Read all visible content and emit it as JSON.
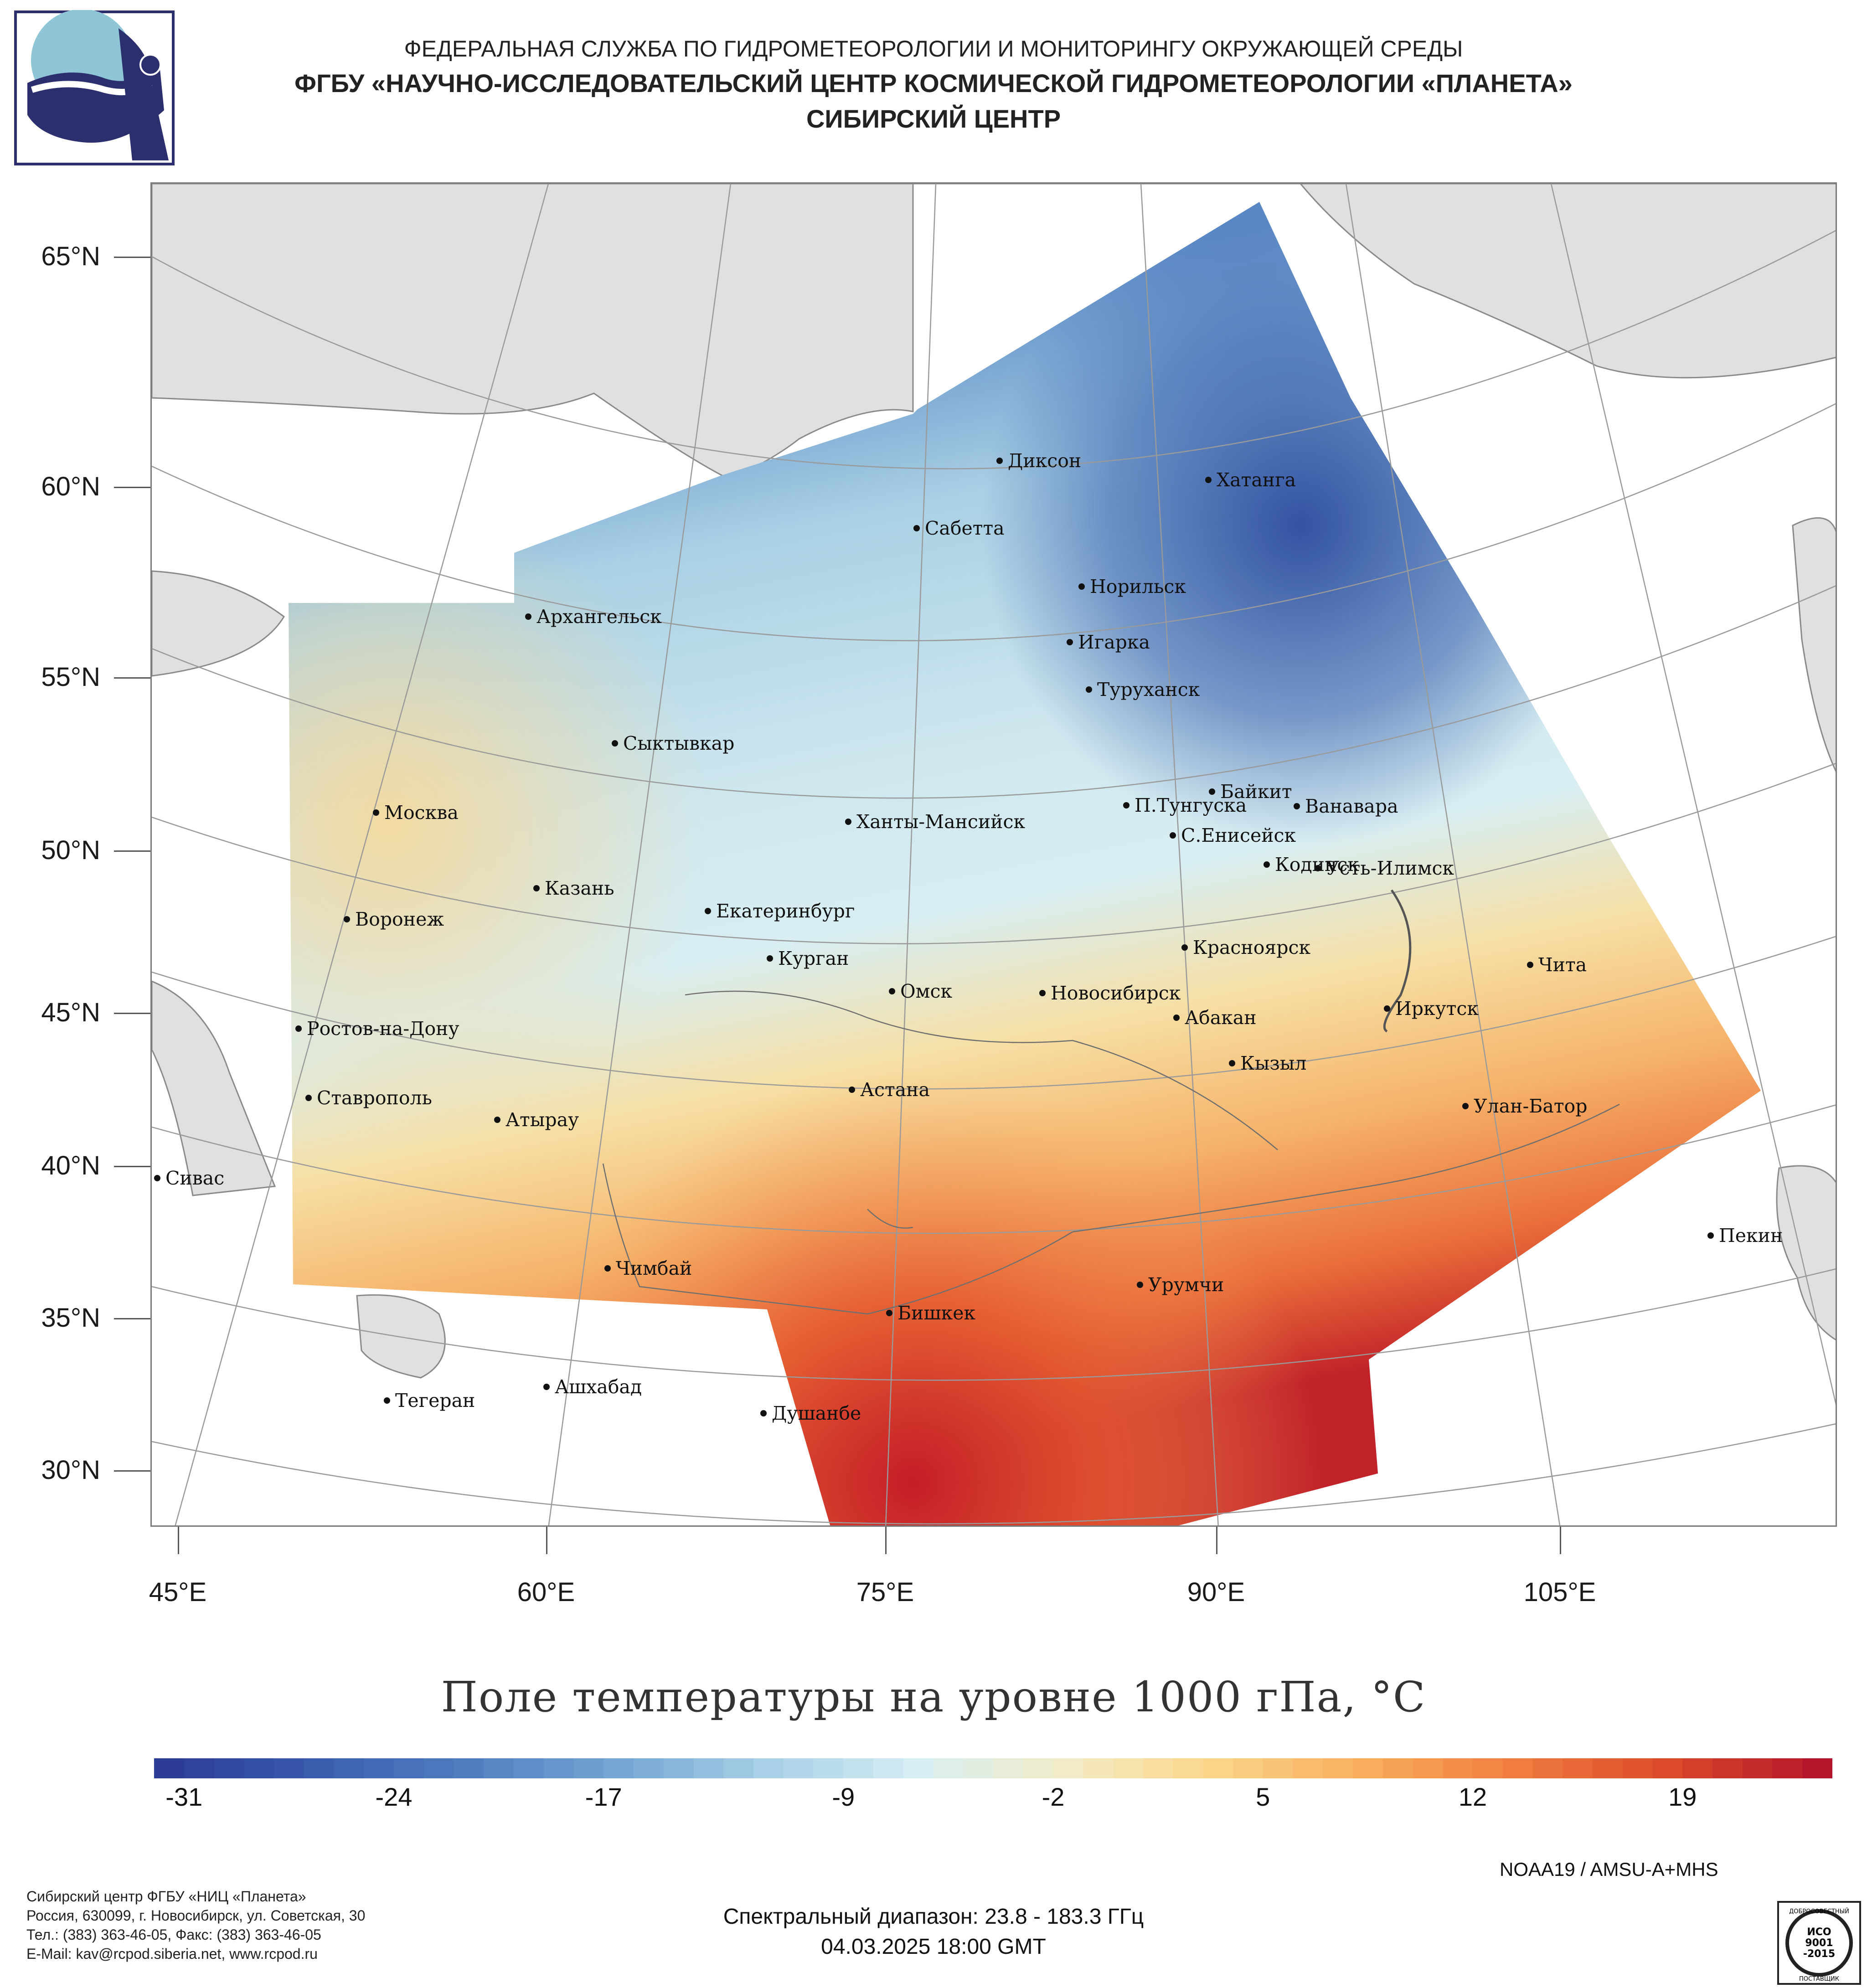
{
  "header": {
    "agency": "ФЕДЕРАЛЬНАЯ СЛУЖБА ПО ГИДРОМЕТЕОРОЛОГИИ И МОНИТОРИНГУ ОКРУЖАЮЩЕЙ СРЕДЫ",
    "organization": "ФГБУ «НАУЧНО-ИССЛЕДОВАТЕЛЬСКИЙ ЦЕНТР КОСМИЧЕСКОЙ ГИДРОМЕТЕОРОЛОГИИ «ПЛАНЕТА»",
    "center": "СИБИРСКИЙ ЦЕНТР",
    "logo_icon": "planeta-logo-icon"
  },
  "map": {
    "title": "Поле температуры на уровне 1000 гПа, °C",
    "lat_labels": [
      "65°N",
      "60°N",
      "55°N",
      "50°N",
      "45°N",
      "40°N",
      "35°N",
      "30°N"
    ],
    "lon_labels": [
      "45°E",
      "60°E",
      "75°E",
      "90°E",
      "105°E"
    ],
    "land_color": "#e0e0e0",
    "cities": [
      {
        "name": "Диксон"
      },
      {
        "name": "Хатанга"
      },
      {
        "name": "Сабетта"
      },
      {
        "name": "Норильск"
      },
      {
        "name": "Архангельск"
      },
      {
        "name": "Игарка"
      },
      {
        "name": "Туруханск"
      },
      {
        "name": "Сыктывкар"
      },
      {
        "name": "Байкит"
      },
      {
        "name": "П.Тунгуска"
      },
      {
        "name": "Ванавара"
      },
      {
        "name": "Москва"
      },
      {
        "name": "Ханты-Мансийск"
      },
      {
        "name": "С.Енисейск"
      },
      {
        "name": "Кодинск"
      },
      {
        "name": "Усть-Илимск"
      },
      {
        "name": "Казань"
      },
      {
        "name": "Екатеринбург"
      },
      {
        "name": "Воронеж"
      },
      {
        "name": "Красноярск"
      },
      {
        "name": "Курган"
      },
      {
        "name": "Чита"
      },
      {
        "name": "Омск"
      },
      {
        "name": "Новосибирск"
      },
      {
        "name": "Иркутск"
      },
      {
        "name": "Ростов-на-Дону"
      },
      {
        "name": "Абакан"
      },
      {
        "name": "Кызыл"
      },
      {
        "name": "Астана"
      },
      {
        "name": "Ставрополь"
      },
      {
        "name": "Улан-Батор"
      },
      {
        "name": "Атырау"
      },
      {
        "name": "Сивас"
      },
      {
        "name": "Пекин"
      },
      {
        "name": "Чимбай"
      },
      {
        "name": "Урумчи"
      },
      {
        "name": "Бишкек"
      },
      {
        "name": "Ашхабад"
      },
      {
        "name": "Тегеран"
      },
      {
        "name": "Душанбе"
      }
    ]
  },
  "colorbar": {
    "labels": [
      "-31",
      "-24",
      "-17",
      "-9",
      "-2",
      "5",
      "12",
      "19"
    ],
    "min": -32,
    "max": 24,
    "colors": [
      "#2c3c96",
      "#3a5dae",
      "#4f7fc0",
      "#75a6d4",
      "#a8d0e6",
      "#d7eef4",
      "#f3ecc6",
      "#fbd488",
      "#f8ac5c",
      "#f07c3f",
      "#dc4a2c",
      "#b5152a"
    ]
  },
  "satellite": "NOAA19 / AMSU-A+MHS",
  "spectral": "Спектральный диапазон: 23.8 - 183.3 ГГц",
  "datetime": "04.03.2025 18:00 GMT",
  "footer": {
    "line1": "Сибирский центр ФГБУ «НИЦ «Планета»",
    "line2": "Россия, 630099, г. Новосибирск, ул. Советская, 30",
    "line3": "Тел.: (383) 363-46-05, Факс: (383) 363-46-05",
    "line4": "E-Mail: kav@rcpod.siberia.net, www.rcpod.ru"
  },
  "iso_badge": {
    "top": "ДОБРОСОВЕСТНЫЙ",
    "line1": "ИСО",
    "line2": "9001",
    "line3": "-2015",
    "bottom": "ПОСТАВЩИК"
  }
}
